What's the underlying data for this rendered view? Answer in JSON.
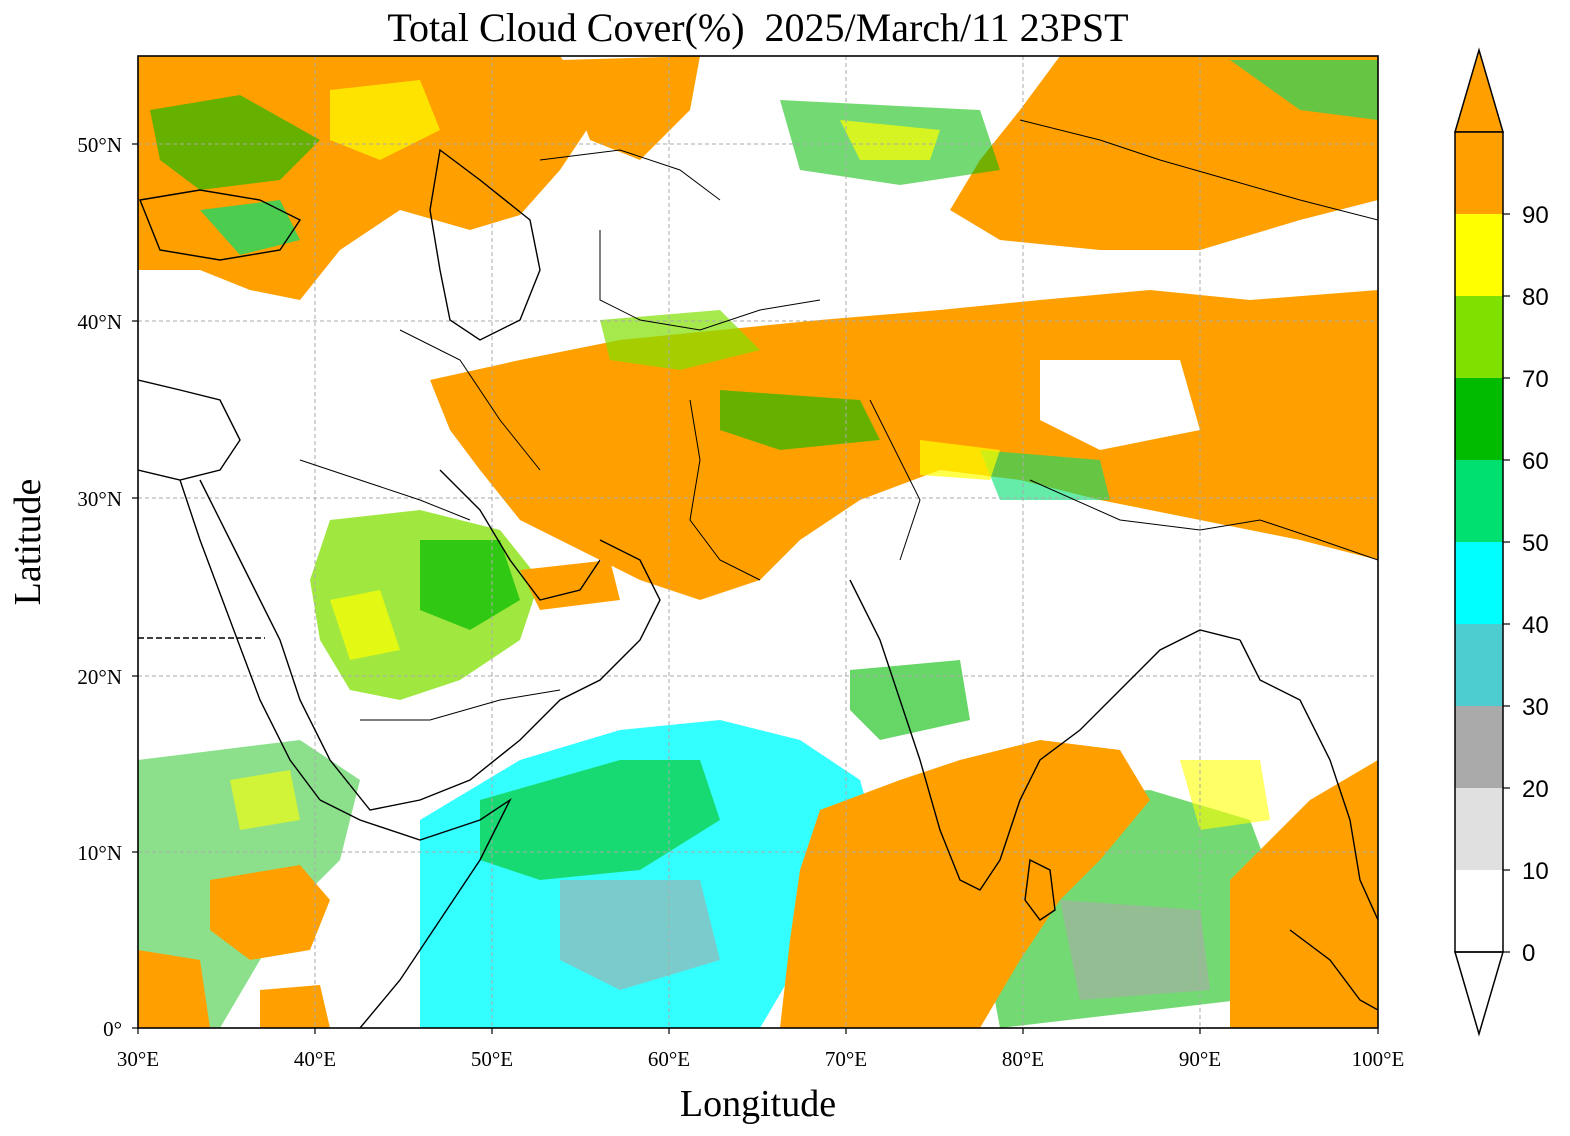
{
  "title": "Total Cloud Cover(%)  2025/March/11 23PST",
  "xlabel": "Longitude",
  "ylabel": "Latitude",
  "x_ticks": [
    "30°E",
    "40°E",
    "50°E",
    "60°E",
    "70°E",
    "80°E",
    "90°E",
    "100°E"
  ],
  "y_ticks": [
    "0°",
    "10°N",
    "20°N",
    "30°N",
    "40°N",
    "50°N"
  ],
  "colorbar": {
    "ticks": [
      "0",
      "10",
      "20",
      "30",
      "40",
      "50",
      "60",
      "70",
      "80",
      "90"
    ],
    "colors": [
      "#ffffff",
      "#e0e0e0",
      "#aaaaaa",
      "#4ecdd0",
      "#00ffff",
      "#00e070",
      "#00bb00",
      "#80e000",
      "#ffff00",
      "#ffa000"
    ],
    "extend": "both"
  },
  "map": {
    "lon_range": [
      30,
      100
    ],
    "lat_range": [
      0,
      55
    ],
    "grid": true,
    "dominant_fill": "#ffa000"
  }
}
